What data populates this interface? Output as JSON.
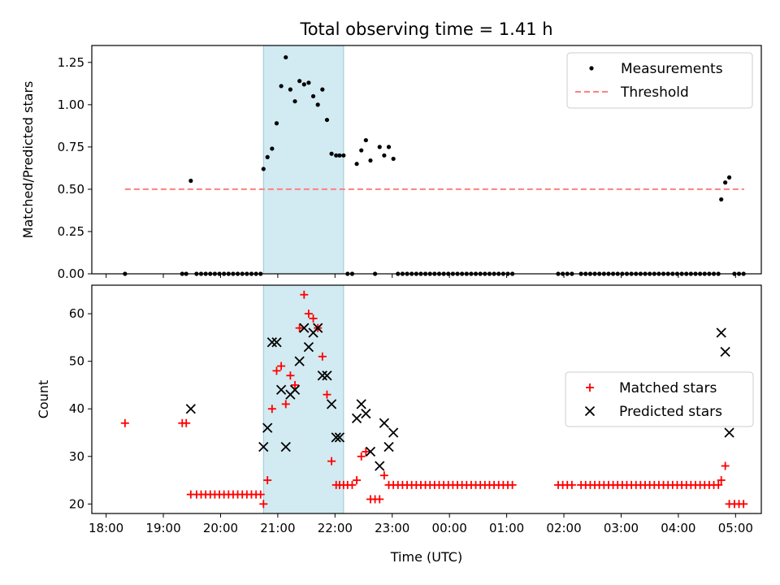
{
  "chart_data": {
    "title": "Total observing time = 1.41 h",
    "xlabel": "Time (UTC)",
    "x_unit": "hours since 18:00 UTC",
    "xlim": [
      -0.25,
      11.45
    ],
    "xticks": [
      0.0,
      1.0,
      2.0,
      3.0,
      4.0,
      5.0,
      6.0,
      7.0,
      8.0,
      9.0,
      10.0,
      11.0
    ],
    "xtick_labels": [
      "18:00",
      "19:00",
      "20:00",
      "21:00",
      "22:00",
      "23:00",
      "00:00",
      "01:00",
      "02:00",
      "03:00",
      "04:00",
      "05:00"
    ],
    "highlight_span": [
      2.75,
      4.15
    ],
    "highlight_color": "#add8e6",
    "panels": [
      {
        "type": "scatter",
        "ylabel": "Matched/Predicted stars",
        "ylim": [
          0,
          1.35
        ],
        "yticks": [
          0.0,
          0.25,
          0.5,
          0.75,
          1.0,
          1.25
        ],
        "ytick_labels": [
          "0.00",
          "0.25",
          "0.50",
          "0.75",
          "1.00",
          "1.25"
        ],
        "legend": {
          "position": "top-right",
          "entries": [
            "Measurements",
            "Threshold"
          ]
        },
        "threshold": {
          "name": "Threshold",
          "y": 0.5,
          "x": [
            0.33,
            11.15
          ],
          "color": "#ff7f7f",
          "style": "dashed"
        },
        "series": [
          {
            "name": "Measurements",
            "color": "#000000",
            "marker": "dot",
            "x": [
              0.33,
              1.33,
              1.4,
              1.48,
              1.58,
              1.66,
              1.74,
              1.82,
              1.9,
              1.98,
              2.06,
              2.14,
              2.22,
              2.3,
              2.38,
              2.46,
              2.54,
              2.62,
              2.7,
              2.75,
              2.82,
              2.9,
              2.98,
              3.06,
              3.14,
              3.22,
              3.3,
              3.38,
              3.46,
              3.54,
              3.62,
              3.7,
              3.78,
              3.86,
              3.94,
              4.02,
              4.08,
              4.15,
              4.22,
              4.3,
              4.38,
              4.46,
              4.54,
              4.62,
              4.7,
              4.78,
              4.86,
              4.94,
              5.02,
              5.1,
              5.18,
              5.26,
              5.34,
              5.42,
              5.5,
              5.58,
              5.66,
              5.74,
              5.82,
              5.9,
              5.98,
              6.06,
              6.14,
              6.22,
              6.3,
              6.38,
              6.46,
              6.54,
              6.62,
              6.7,
              6.78,
              6.86,
              6.94,
              7.02,
              7.1,
              7.9,
              7.98,
              8.06,
              8.14,
              8.3,
              8.38,
              8.46,
              8.54,
              8.62,
              8.7,
              8.78,
              8.86,
              8.94,
              9.02,
              9.1,
              9.18,
              9.26,
              9.34,
              9.42,
              9.5,
              9.58,
              9.66,
              9.74,
              9.82,
              9.9,
              9.98,
              10.06,
              10.14,
              10.22,
              10.3,
              10.38,
              10.46,
              10.54,
              10.62,
              10.7,
              10.75,
              10.82,
              10.89,
              10.98,
              11.06,
              11.14
            ],
            "y": [
              0.0,
              0.0,
              0.0,
              0.55,
              0.0,
              0.0,
              0.0,
              0.0,
              0.0,
              0.0,
              0.0,
              0.0,
              0.0,
              0.0,
              0.0,
              0.0,
              0.0,
              0.0,
              0.0,
              0.62,
              0.69,
              0.74,
              0.89,
              1.11,
              1.28,
              1.09,
              1.02,
              1.14,
              1.12,
              1.13,
              1.05,
              1.0,
              1.09,
              0.91,
              0.71,
              0.7,
              0.7,
              0.7,
              0.0,
              0.0,
              0.65,
              0.73,
              0.79,
              0.67,
              0.0,
              0.75,
              0.7,
              0.75,
              0.68,
              0.0,
              0.0,
              0.0,
              0.0,
              0.0,
              0.0,
              0.0,
              0.0,
              0.0,
              0.0,
              0.0,
              0.0,
              0.0,
              0.0,
              0.0,
              0.0,
              0.0,
              0.0,
              0.0,
              0.0,
              0.0,
              0.0,
              0.0,
              0.0,
              0.0,
              0.0,
              0.0,
              0.0,
              0.0,
              0.0,
              0.0,
              0.0,
              0.0,
              0.0,
              0.0,
              0.0,
              0.0,
              0.0,
              0.0,
              0.0,
              0.0,
              0.0,
              0.0,
              0.0,
              0.0,
              0.0,
              0.0,
              0.0,
              0.0,
              0.0,
              0.0,
              0.0,
              0.0,
              0.0,
              0.0,
              0.0,
              0.0,
              0.0,
              0.0,
              0.0,
              0.0,
              0.44,
              0.54,
              0.57,
              0.0,
              0.0,
              0.0
            ]
          }
        ]
      },
      {
        "type": "scatter",
        "ylabel": "Count",
        "ylim": [
          18,
          66
        ],
        "yticks": [
          20,
          30,
          40,
          50,
          60
        ],
        "ytick_labels": [
          "20",
          "30",
          "40",
          "50",
          "60"
        ],
        "legend": {
          "position": "center-right",
          "entries": [
            "Matched stars",
            "Predicted stars"
          ]
        },
        "series": [
          {
            "name": "Matched stars",
            "color": "#ff0000",
            "marker": "plus",
            "x": [
              0.33,
              1.33,
              1.4,
              1.48,
              1.58,
              1.66,
              1.74,
              1.82,
              1.9,
              1.98,
              2.06,
              2.14,
              2.22,
              2.3,
              2.38,
              2.46,
              2.54,
              2.62,
              2.7,
              2.75,
              2.82,
              2.9,
              2.98,
              3.06,
              3.14,
              3.22,
              3.3,
              3.38,
              3.46,
              3.54,
              3.62,
              3.7,
              3.78,
              3.86,
              3.94,
              4.02,
              4.08,
              4.15,
              4.22,
              4.3,
              4.38,
              4.46,
              4.54,
              4.62,
              4.7,
              4.78,
              4.86,
              4.94,
              5.02,
              5.1,
              5.18,
              5.26,
              5.34,
              5.42,
              5.5,
              5.58,
              5.66,
              5.74,
              5.82,
              5.9,
              5.98,
              6.06,
              6.14,
              6.22,
              6.3,
              6.38,
              6.46,
              6.54,
              6.62,
              6.7,
              6.78,
              6.86,
              6.94,
              7.02,
              7.1,
              7.9,
              7.98,
              8.06,
              8.14,
              8.3,
              8.38,
              8.46,
              8.54,
              8.62,
              8.7,
              8.78,
              8.86,
              8.94,
              9.02,
              9.1,
              9.18,
              9.26,
              9.34,
              9.42,
              9.5,
              9.58,
              9.66,
              9.74,
              9.82,
              9.9,
              9.98,
              10.06,
              10.14,
              10.22,
              10.3,
              10.38,
              10.46,
              10.54,
              10.62,
              10.7,
              10.75,
              10.82,
              10.89,
              10.98,
              11.06,
              11.14
            ],
            "y": [
              37,
              37,
              37,
              22,
              22,
              22,
              22,
              22,
              22,
              22,
              22,
              22,
              22,
              22,
              22,
              22,
              22,
              22,
              22,
              20,
              25,
              40,
              48,
              49,
              41,
              47,
              45,
              57,
              64,
              60,
              59,
              57,
              51,
              43,
              29,
              24,
              24,
              24,
              24,
              24,
              25,
              30,
              31,
              21,
              21,
              21,
              26,
              24,
              24,
              24,
              24,
              24,
              24,
              24,
              24,
              24,
              24,
              24,
              24,
              24,
              24,
              24,
              24,
              24,
              24,
              24,
              24,
              24,
              24,
              24,
              24,
              24,
              24,
              24,
              24,
              24,
              24,
              24,
              24,
              24,
              24,
              24,
              24,
              24,
              24,
              24,
              24,
              24,
              24,
              24,
              24,
              24,
              24,
              24,
              24,
              24,
              24,
              24,
              24,
              24,
              24,
              24,
              24,
              24,
              24,
              24,
              24,
              24,
              24,
              24,
              25,
              28,
              20,
              20,
              20,
              20
            ]
          },
          {
            "name": "Predicted stars",
            "color": "#000000",
            "marker": "x",
            "x": [
              1.48,
              2.75,
              2.82,
              2.9,
              2.98,
              3.06,
              3.14,
              3.22,
              3.3,
              3.38,
              3.46,
              3.54,
              3.62,
              3.7,
              3.78,
              3.86,
              3.94,
              4.02,
              4.08,
              4.38,
              4.46,
              4.54,
              4.62,
              4.78,
              4.86,
              4.94,
              5.02,
              10.75,
              10.82,
              10.89
            ],
            "y": [
              40,
              32,
              36,
              54,
              54,
              44,
              32,
              43,
              44,
              50,
              57,
              53,
              56,
              57,
              47,
              47,
              41,
              34,
              34,
              38,
              41,
              39,
              31,
              28,
              37,
              32,
              35,
              56,
              52,
              35
            ]
          }
        ]
      }
    ]
  }
}
